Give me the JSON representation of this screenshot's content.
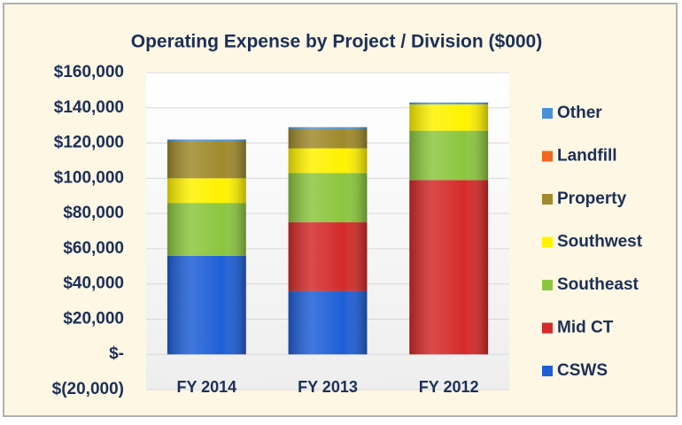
{
  "chart_data": {
    "type": "stacked_bar",
    "title": "Operating Expense by Project / Division ($000)",
    "categories": [
      "FY 2014",
      "FY 2013",
      "FY 2012"
    ],
    "series": [
      {
        "name": "CSWS",
        "color": "#1f5fd6",
        "values": [
          56000,
          36000,
          0
        ]
      },
      {
        "name": "Mid CT",
        "color": "#d42a2a",
        "values": [
          0,
          39000,
          99000
        ]
      },
      {
        "name": "Southeast",
        "color": "#8cc63f",
        "values": [
          30000,
          28000,
          28000
        ]
      },
      {
        "name": "Southwest",
        "color": "#fff200",
        "values": [
          14000,
          14000,
          15000
        ]
      },
      {
        "name": "Property",
        "color": "#a08a2c",
        "values": [
          21000,
          11000,
          0
        ]
      },
      {
        "name": "Landfill",
        "color": "#f26522",
        "values": [
          0,
          0,
          0
        ]
      },
      {
        "name": "Other",
        "color": "#4a90d9",
        "values": [
          1000,
          1000,
          1000
        ]
      }
    ],
    "ylim": [
      -20000,
      160000
    ],
    "yticks": [
      {
        "value": -20000,
        "label": "$(20,000)"
      },
      {
        "value": 0,
        "label": "$-"
      },
      {
        "value": 20000,
        "label": "$20,000"
      },
      {
        "value": 40000,
        "label": "$40,000"
      },
      {
        "value": 60000,
        "label": "$60,000"
      },
      {
        "value": 80000,
        "label": "$80,000"
      },
      {
        "value": 100000,
        "label": "$100,000"
      },
      {
        "value": 120000,
        "label": "$120,000"
      },
      {
        "value": 140000,
        "label": "$140,000"
      },
      {
        "value": 160000,
        "label": "$160,000"
      }
    ],
    "grid": true,
    "legend": "right"
  }
}
